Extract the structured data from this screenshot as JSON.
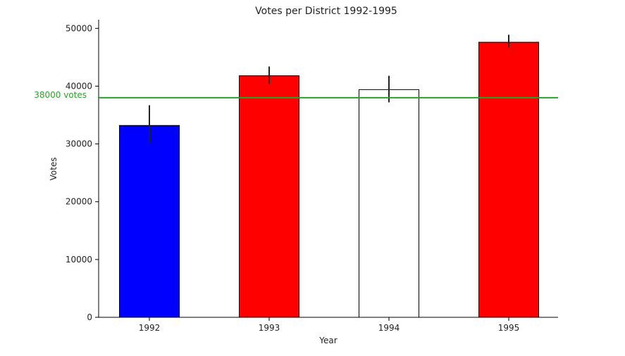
{
  "chart_data": {
    "type": "bar",
    "title": "Votes per District 1992-1995",
    "xlabel": "Year",
    "ylabel": "Votes",
    "categories": [
      "1992",
      "1993",
      "1994",
      "1995"
    ],
    "values": [
      33200,
      41800,
      39400,
      47600
    ],
    "error_low": [
      30100,
      40400,
      37200,
      46700
    ],
    "error_high": [
      36700,
      43400,
      41800,
      48900
    ],
    "bar_colors": [
      "#0000ff",
      "#ff0000",
      "#ffffff",
      "#ff0000"
    ],
    "bar_edge_color": "#000000",
    "ylim": [
      0,
      51500
    ],
    "yticks": [
      0,
      10000,
      20000,
      30000,
      40000,
      50000
    ],
    "grid": false,
    "reference_line": {
      "value": 38000,
      "label": "38000 votes",
      "color": "#2ca02c"
    }
  }
}
